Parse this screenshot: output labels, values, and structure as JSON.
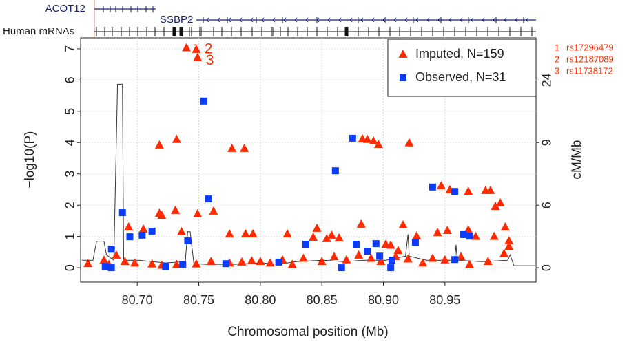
{
  "gene_track": {
    "genes": [
      "ACOT12",
      "SSBP2"
    ],
    "track_label": "Human mRNAs"
  },
  "chart_data": {
    "type": "scatter",
    "x_label": "Chromosomal position (Mb)",
    "y_label": "−log10(P)",
    "y2_label": "cM/Mb",
    "xlim": [
      80.654,
      81.024
    ],
    "ylim": [
      -0.46,
      7.35
    ],
    "xticks": [
      {
        "value": 80.7,
        "label": "80.70"
      },
      {
        "value": 80.75,
        "label": "80.75"
      },
      {
        "value": 80.8,
        "label": "80.80"
      },
      {
        "value": 80.85,
        "label": "80.85"
      },
      {
        "value": 80.9,
        "label": "80.90"
      },
      {
        "value": 80.95,
        "label": "80.95"
      }
    ],
    "yticks": [
      0,
      1,
      2,
      3,
      4,
      5,
      6,
      7
    ],
    "y2lim": [
      -1.38,
      34.1
    ],
    "y2ticks": [
      0,
      6,
      9,
      24
    ],
    "grid": true,
    "legend": "top-right",
    "series": [
      {
        "name": "Imputed, N=159",
        "color": "#ff2a00",
        "marker": "triangle",
        "x": [
          80.74,
          80.748,
          80.749,
          80.718,
          80.732,
          80.777,
          80.787,
          80.718,
          80.72,
          80.731,
          80.749,
          80.762,
          80.693,
          80.705,
          80.736,
          80.775,
          80.788,
          80.794,
          80.822,
          80.843,
          80.854,
          80.858,
          80.864,
          80.883,
          80.887,
          80.892,
          80.896,
          80.921,
          80.846,
          80.882,
          80.916,
          80.944,
          80.952,
          80.969,
          80.947,
          80.954,
          80.969,
          80.983,
          80.987,
          80.991,
          80.995,
          80.999,
          81.002,
          80.975,
          80.99,
          80.927,
          80.902,
          80.906,
          80.912,
          80.66,
          80.673,
          80.677,
          80.683,
          80.69,
          80.698,
          80.712,
          80.72,
          80.732,
          80.748,
          80.76,
          80.775,
          80.785,
          80.793,
          80.8,
          80.808,
          80.818,
          80.826,
          80.835,
          80.85,
          80.86,
          80.87,
          80.88,
          80.89,
          80.898,
          80.91,
          80.92,
          80.932,
          80.94,
          80.95,
          80.963,
          80.97,
          80.985,
          80.998,
          81.002
        ],
        "values": [
          7.03,
          6.98,
          6.72,
          3.92,
          4.1,
          3.81,
          3.81,
          1.74,
          1.67,
          1.83,
          1.72,
          1.81,
          1.3,
          1.23,
          1.15,
          1.08,
          1.08,
          1.08,
          1.08,
          0.97,
          0.93,
          1.04,
          0.95,
          4.12,
          4.1,
          4.05,
          3.94,
          3.99,
          1.26,
          1.39,
          1.37,
          1.12,
          1.19,
          1.21,
          2.62,
          2.49,
          2.44,
          2.47,
          2.47,
          1.96,
          2.07,
          1.3,
          0.86,
          1.0,
          1.0,
          1.01,
          0.75,
          0.72,
          0.55,
          0.13,
          0.24,
          0.1,
          0.4,
          0.2,
          0.15,
          0.12,
          0.08,
          0.1,
          0.12,
          0.2,
          0.15,
          0.18,
          0.22,
          0.2,
          0.15,
          0.25,
          0.1,
          0.3,
          0.2,
          0.35,
          0.25,
          0.4,
          0.3,
          0.2,
          0.35,
          0.28,
          0.15,
          0.3,
          0.25,
          0.35,
          0.1,
          0.2,
          0.45,
          0.68
        ]
      },
      {
        "name": "Observed, N=31",
        "color": "#0a3cff",
        "marker": "square",
        "x": [
          80.688,
          80.694,
          80.704,
          80.712,
          80.679,
          80.679,
          80.674,
          80.723,
          80.737,
          80.741,
          80.754,
          80.758,
          80.772,
          80.815,
          80.837,
          80.861,
          80.875,
          80.866,
          80.878,
          80.887,
          80.894,
          80.897,
          80.907,
          80.906,
          80.926,
          80.94,
          80.958,
          80.958,
          80.965,
          80.97
        ],
        "values": [
          1.76,
          0.99,
          1.04,
          1.17,
          0.59,
          0.0,
          0.04,
          0.04,
          0.11,
          0.86,
          5.33,
          2.2,
          0.13,
          0.18,
          0.75,
          3.1,
          4.14,
          0.0,
          0.75,
          0.53,
          0.77,
          0.37,
          0.24,
          0.0,
          0.81,
          2.58,
          2.44,
          0.26,
          1.06,
          1.01
        ]
      }
    ],
    "recombination": {
      "axis": "y2",
      "color": "#333333",
      "x": [
        80.655,
        80.664,
        80.667,
        80.673,
        80.675,
        80.681,
        80.684,
        80.688,
        80.689,
        80.701,
        80.712,
        80.723,
        80.739,
        80.741,
        80.743,
        80.746,
        80.756,
        80.779,
        80.801,
        80.815,
        80.829,
        80.851,
        80.868,
        80.885,
        80.902,
        80.918,
        80.92,
        80.921,
        80.935,
        80.958,
        80.959,
        80.96,
        80.98,
        81.001,
        81.003,
        81.006,
        81.023
      ],
      "values": [
        0.72,
        0.72,
        2.54,
        2.54,
        1.24,
        0.72,
        23.0,
        23.0,
        0.72,
        0.72,
        0.59,
        0.46,
        0.59,
        3.46,
        3.46,
        0.39,
        0.33,
        0.33,
        0.46,
        0.33,
        0.59,
        0.72,
        0.59,
        0.72,
        0.72,
        1.11,
        3.2,
        1.11,
        0.72,
        0.72,
        2.2,
        0.72,
        0.59,
        0.72,
        1.24,
        0.2,
        0.2
      ]
    },
    "annotations": [
      {
        "number": 1,
        "label": "rs17296479"
      },
      {
        "number": 2,
        "label": "rs12187089"
      },
      {
        "number": 3,
        "label": "rs11738172"
      }
    ]
  }
}
